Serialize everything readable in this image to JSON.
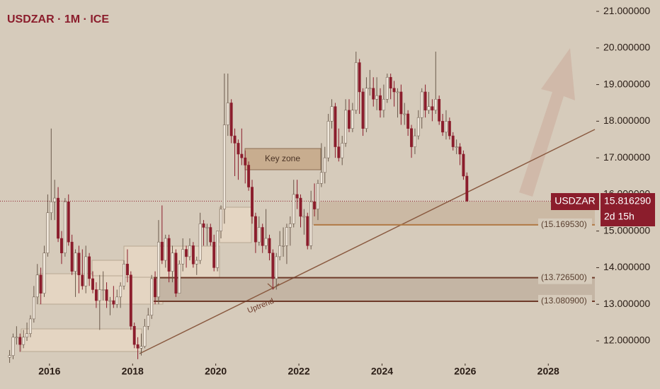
{
  "chart_data": {
    "type": "candlestick",
    "title": "USDZAR · 1M · ICE",
    "annotations": [
      "Key zone",
      "Uptrend"
    ],
    "up_color": "#efe6da",
    "down_color": "#8b1d2c",
    "xlim": [
      2014.81,
      2029.12
    ],
    "xticks": [
      2016,
      2018,
      2020,
      2022,
      2024,
      2026,
      2028
    ],
    "ylim": [
      11.42,
      21.31
    ],
    "yticks": [
      {
        "value": 12,
        "label": "12.000000"
      },
      {
        "value": 13,
        "label": "13.000000"
      },
      {
        "value": 14,
        "label": "14.000000"
      },
      {
        "value": 15,
        "label": "15.000000"
      },
      {
        "value": 16,
        "label": "16.000000"
      },
      {
        "value": 17,
        "label": "17.000000"
      },
      {
        "value": 18,
        "label": "18.000000"
      },
      {
        "value": 19,
        "label": "19.000000"
      },
      {
        "value": 20,
        "label": "20.000000"
      },
      {
        "value": 21,
        "label": "21.000000"
      }
    ],
    "levels": [
      {
        "value": 15.16953,
        "label": "(15.169530)",
        "color": "#b07a45"
      },
      {
        "value": 13.7265,
        "label": "(13.726500)",
        "color": "#6e3b2a"
      },
      {
        "value": 13.0809,
        "label": "(13.080900)",
        "color": "#6e3b2a"
      }
    ],
    "last_price": {
      "value": 15.81629,
      "label": "15.816290"
    },
    "countdown": "2d 15h",
    "x": [
      "2015-01",
      "2015-02",
      "2015-03",
      "2015-04",
      "2015-05",
      "2015-06",
      "2015-07",
      "2015-08",
      "2015-09",
      "2015-10",
      "2015-11",
      "2015-12",
      "2016-01",
      "2016-02",
      "2016-03",
      "2016-04",
      "2016-05",
      "2016-06",
      "2016-07",
      "2016-08",
      "2016-09",
      "2016-10",
      "2016-11",
      "2016-12",
      "2017-01",
      "2017-02",
      "2017-03",
      "2017-04",
      "2017-05",
      "2017-06",
      "2017-07",
      "2017-08",
      "2017-09",
      "2017-10",
      "2017-11",
      "2017-12",
      "2018-01",
      "2018-02",
      "2018-03",
      "2018-04",
      "2018-05",
      "2018-06",
      "2018-07",
      "2018-08",
      "2018-09",
      "2018-10",
      "2018-11",
      "2018-12",
      "2019-01",
      "2019-02",
      "2019-03",
      "2019-04",
      "2019-05",
      "2019-06",
      "2019-07",
      "2019-08",
      "2019-09",
      "2019-10",
      "2019-11",
      "2019-12",
      "2020-01",
      "2020-02",
      "2020-03",
      "2020-04",
      "2020-05",
      "2020-06",
      "2020-07",
      "2020-08",
      "2020-09",
      "2020-10",
      "2020-11",
      "2020-12",
      "2021-01",
      "2021-02",
      "2021-03",
      "2021-04",
      "2021-05",
      "2021-06",
      "2021-07",
      "2021-08",
      "2021-09",
      "2021-10",
      "2021-11",
      "2021-12",
      "2022-01",
      "2022-02",
      "2022-03",
      "2022-04",
      "2022-05",
      "2022-06",
      "2022-07",
      "2022-08",
      "2022-09",
      "2022-10",
      "2022-11",
      "2022-12",
      "2023-01",
      "2023-02",
      "2023-03",
      "2023-04",
      "2023-05",
      "2023-06",
      "2023-07",
      "2023-08",
      "2023-09",
      "2023-10",
      "2023-11",
      "2023-12",
      "2024-01",
      "2024-02",
      "2024-03",
      "2024-04",
      "2024-05",
      "2024-06",
      "2024-07",
      "2024-08",
      "2024-09",
      "2024-10",
      "2024-11",
      "2024-12",
      "2025-01",
      "2025-02",
      "2025-03",
      "2025-04",
      "2025-05",
      "2025-06",
      "2025-07",
      "2025-08",
      "2025-09",
      "2025-10",
      "2025-11",
      "2025-12",
      "2026-01"
    ],
    "series": [
      {
        "name": "USDZAR",
        "open": [
          11.55,
          11.6,
          12.1,
          12.1,
          11.9,
          12.1,
          12.2,
          12.6,
          13.2,
          13.8,
          13.3,
          14.4,
          15.5,
          15.8,
          15.9,
          14.8,
          14.4,
          15.8,
          14.7,
          13.9,
          14.4,
          13.8,
          13.5,
          14.3,
          13.7,
          13.4,
          13.1,
          13.4,
          13.4,
          13.1,
          13.1,
          13.0,
          13.2,
          13.5,
          14.1,
          13.8,
          12.4,
          11.9,
          11.8,
          11.85,
          12.4,
          12.7,
          13.7,
          13.2,
          14.7,
          14.2,
          14.8,
          13.9,
          14.4,
          13.3,
          14.1,
          14.5,
          14.3,
          14.6,
          14.1,
          14.2,
          15.2,
          15.1,
          15.1,
          14.7,
          14.0,
          15.0,
          15.6,
          17.9,
          18.5,
          17.6,
          17.4,
          17.1,
          17.0,
          16.8,
          16.2,
          15.4,
          14.7,
          15.1,
          14.6,
          14.8,
          14.4,
          13.7,
          14.3,
          14.6,
          14.6,
          15.1,
          15.2,
          16.0,
          15.9,
          15.4,
          15.4,
          14.6,
          15.8,
          15.6,
          16.3,
          16.6,
          17.0,
          18.0,
          18.4,
          17.3,
          17.0,
          17.4,
          18.3,
          17.8,
          18.3,
          19.6,
          18.8,
          17.8,
          18.9,
          18.9,
          18.6,
          18.7,
          18.3,
          18.6,
          19.2,
          18.9,
          18.8,
          18.8,
          18.2,
          18.2,
          17.8,
          17.3,
          17.6,
          18.1,
          18.8,
          18.3,
          18.4,
          18.3,
          18.6,
          18.0,
          17.7,
          18.0,
          17.6,
          17.3,
          17.3,
          17.1,
          16.5
        ],
        "high": [
          11.75,
          12.2,
          12.4,
          12.2,
          12.3,
          12.5,
          12.7,
          13.5,
          14.1,
          14.0,
          14.6,
          16.0,
          17.8,
          16.4,
          16.2,
          15.0,
          15.9,
          16.0,
          14.9,
          14.5,
          14.6,
          14.5,
          14.6,
          14.4,
          13.9,
          13.6,
          13.8,
          13.9,
          13.6,
          13.2,
          13.5,
          13.4,
          13.6,
          14.2,
          14.5,
          13.9,
          12.5,
          12.1,
          12.2,
          12.6,
          12.9,
          13.8,
          13.9,
          15.3,
          15.7,
          14.9,
          14.9,
          14.6,
          14.5,
          14.2,
          14.8,
          14.6,
          14.8,
          14.7,
          14.3,
          15.5,
          15.3,
          15.2,
          15.2,
          14.9,
          15.0,
          15.7,
          19.3,
          19.3,
          18.6,
          17.8,
          17.5,
          17.8,
          17.2,
          16.9,
          16.4,
          15.5,
          15.4,
          15.2,
          15.6,
          14.9,
          14.5,
          14.4,
          15.0,
          15.1,
          15.2,
          15.4,
          16.4,
          16.4,
          16.0,
          15.6,
          15.5,
          16.1,
          16.3,
          16.4,
          17.4,
          17.3,
          18.2,
          18.6,
          18.5,
          17.8,
          17.6,
          18.6,
          18.6,
          18.5,
          19.9,
          19.7,
          18.9,
          19.2,
          19.4,
          19.2,
          19.2,
          18.9,
          19.0,
          19.3,
          19.3,
          19.1,
          18.9,
          19.0,
          18.5,
          18.3,
          17.9,
          17.8,
          18.3,
          18.9,
          19.0,
          18.8,
          18.6,
          19.9,
          18.7,
          18.2,
          18.3,
          18.1,
          17.7,
          17.5,
          17.4,
          17.2,
          16.6
        ],
        "low": [
          11.4,
          11.5,
          11.9,
          11.7,
          11.8,
          12.0,
          12.1,
          12.5,
          13.0,
          13.0,
          13.2,
          14.3,
          15.3,
          15.3,
          14.7,
          14.1,
          14.3,
          14.6,
          13.8,
          13.2,
          13.3,
          13.4,
          13.3,
          13.5,
          13.3,
          12.9,
          12.3,
          13.1,
          12.9,
          12.7,
          12.9,
          12.9,
          12.9,
          13.4,
          13.6,
          12.3,
          11.8,
          11.5,
          11.6,
          11.8,
          12.3,
          12.6,
          13.0,
          13.0,
          14.1,
          14.0,
          13.6,
          13.6,
          13.2,
          13.3,
          13.9,
          14.0,
          14.2,
          14.0,
          13.8,
          14.1,
          14.6,
          14.6,
          14.6,
          13.9,
          13.9,
          14.8,
          15.2,
          17.6,
          17.4,
          16.5,
          16.4,
          16.8,
          16.3,
          16.1,
          15.2,
          14.4,
          14.6,
          14.4,
          14.5,
          14.2,
          13.4,
          13.4,
          14.2,
          14.3,
          14.1,
          14.6,
          15.1,
          15.6,
          15.1,
          14.9,
          14.5,
          14.5,
          15.4,
          15.3,
          16.2,
          16.3,
          16.9,
          17.8,
          17.0,
          16.9,
          16.8,
          17.3,
          17.7,
          17.7,
          18.2,
          18.2,
          17.6,
          17.7,
          18.7,
          18.4,
          18.3,
          18.1,
          18.1,
          18.5,
          18.6,
          18.4,
          18.1,
          17.9,
          17.9,
          17.6,
          17.0,
          17.1,
          17.5,
          17.8,
          18.1,
          18.2,
          18.0,
          18.2,
          17.9,
          17.6,
          17.5,
          17.5,
          17.2,
          17.1,
          16.8,
          16.4,
          15.8
        ],
        "close": [
          11.6,
          12.1,
          12.1,
          11.9,
          12.1,
          12.2,
          12.6,
          13.2,
          13.8,
          13.3,
          14.4,
          15.5,
          15.8,
          15.9,
          14.8,
          14.4,
          15.8,
          14.7,
          13.9,
          14.4,
          13.8,
          13.5,
          14.3,
          13.7,
          13.4,
          13.1,
          13.4,
          13.4,
          13.1,
          13.1,
          13.0,
          13.2,
          13.5,
          14.1,
          13.8,
          12.4,
          11.9,
          11.8,
          11.85,
          12.4,
          12.7,
          13.7,
          13.2,
          14.7,
          14.2,
          14.8,
          13.9,
          14.4,
          13.3,
          14.1,
          14.5,
          14.3,
          14.6,
          14.1,
          14.2,
          15.2,
          15.1,
          15.1,
          14.7,
          14.0,
          15.0,
          15.6,
          17.9,
          18.5,
          17.6,
          17.4,
          17.1,
          17.0,
          16.8,
          16.2,
          15.4,
          14.7,
          15.1,
          14.6,
          14.8,
          14.4,
          13.7,
          14.3,
          14.6,
          14.6,
          15.1,
          15.2,
          16.0,
          15.9,
          15.4,
          15.4,
          14.6,
          15.8,
          15.6,
          16.3,
          16.6,
          17.0,
          18.0,
          18.4,
          17.3,
          17.0,
          17.4,
          18.3,
          17.8,
          18.3,
          19.6,
          18.8,
          17.8,
          18.9,
          18.9,
          18.6,
          18.7,
          18.3,
          18.6,
          19.2,
          18.9,
          18.8,
          18.8,
          18.2,
          18.2,
          17.8,
          17.3,
          17.6,
          18.1,
          18.8,
          18.3,
          18.4,
          18.3,
          18.6,
          18.0,
          17.7,
          18.0,
          17.6,
          17.3,
          17.3,
          17.1,
          16.5,
          15.81629
        ]
      }
    ]
  }
}
